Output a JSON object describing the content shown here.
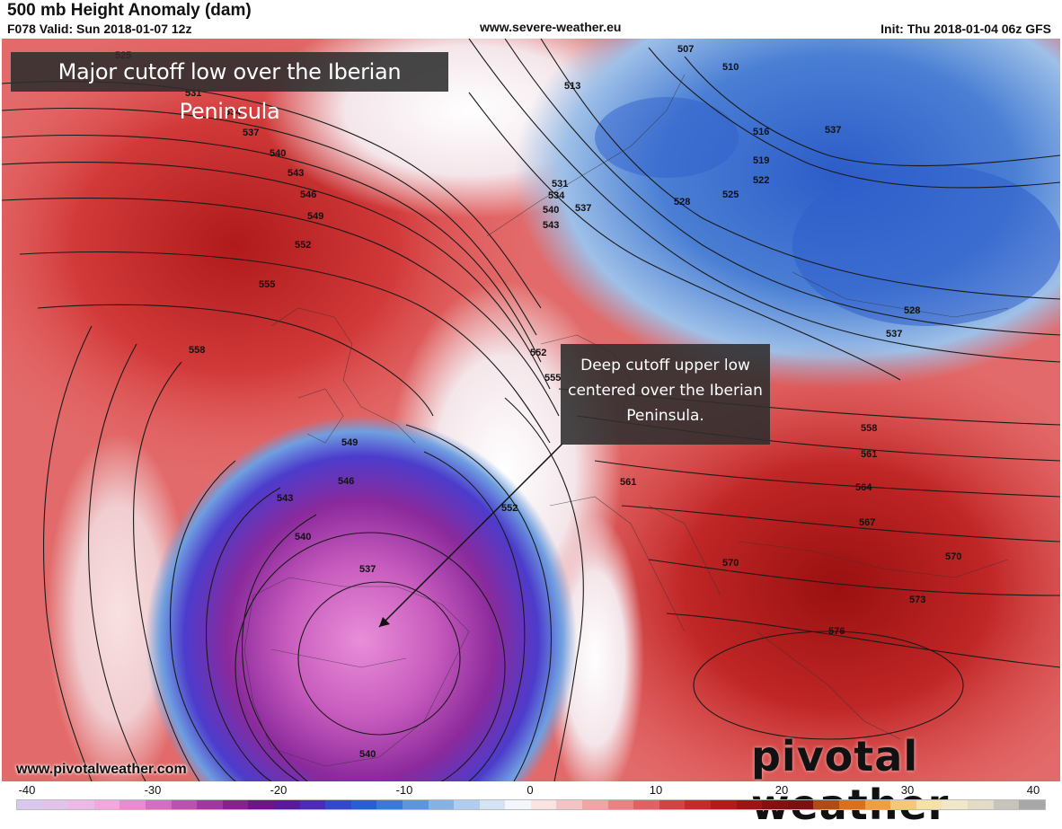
{
  "header": {
    "title": "500 mb Height Anomaly (dam)",
    "valid": "F078 Valid: Sun 2018-01-07 12z",
    "site": "www.severe-weather.eu",
    "init": "Init: Thu 2018-01-04 06z GFS"
  },
  "annotations": {
    "headline": "Major cutoff low over the Iberian Peninsula",
    "callout": "Deep cutoff upper low\ncentered over the Iberian\nPeninsula."
  },
  "contour_labels": [
    "525",
    "531",
    "534",
    "537",
    "540",
    "543",
    "546",
    "549",
    "552",
    "555",
    "558",
    "507",
    "510",
    "513",
    "516",
    "519",
    "522",
    "525",
    "528",
    "531",
    "534",
    "537",
    "540",
    "543",
    "537",
    "528",
    "537",
    "552",
    "555",
    "549",
    "546",
    "543",
    "540",
    "537",
    "552",
    "561",
    "558",
    "561",
    "564",
    "567",
    "570",
    "570",
    "573",
    "576",
    "540"
  ],
  "footer": {
    "url": "www.pivotalweather.com",
    "brand": "pivotal weather"
  },
  "colorbar": {
    "ticks": [
      "-40",
      "-30",
      "-20",
      "-10",
      "0",
      "10",
      "20",
      "30",
      "40"
    ],
    "colors": [
      "#d8c8ee",
      "#e0c2ea",
      "#ecb8e6",
      "#f2a8dc",
      "#ea8ad0",
      "#d36ec2",
      "#bb52b0",
      "#a0389f",
      "#86228c",
      "#6e1486",
      "#5a1a9a",
      "#4a2cb6",
      "#3448cc",
      "#2860d4",
      "#3a7ad6",
      "#5e96dc",
      "#86b2e4",
      "#afcdee",
      "#d4e4f4",
      "#f3f6fa",
      "#f8e2e2",
      "#f4c4c4",
      "#f0a4a4",
      "#ea8282",
      "#e06262",
      "#d24444",
      "#c42c2c",
      "#b41c1c",
      "#9e1414",
      "#861010",
      "#7a1010",
      "#b04a16",
      "#d8701c",
      "#eea040",
      "#f4c878",
      "#f6e2a6",
      "#f0e8c8",
      "#e2dcc6",
      "#c8c4bc",
      "#a8a8a8"
    ]
  }
}
